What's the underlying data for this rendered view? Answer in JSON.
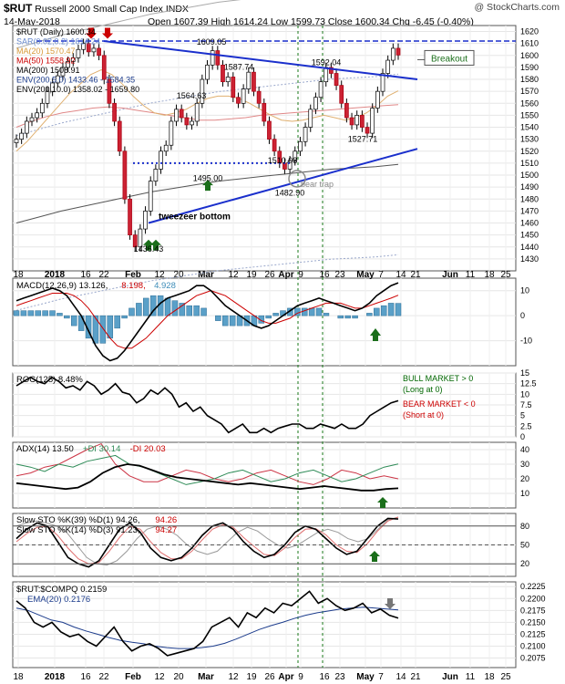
{
  "header": {
    "symbol": "$RUT",
    "title": "Russell 2000 Small Cap Index  INDX",
    "date": "14-May-2018",
    "ohlc": "Open 1607.39  High 1614.24  Low 1599.73  Close 1600.34  Chg -6.45 (-0.40%)",
    "brand": "@ StockCharts.com",
    "chg_color": "#cc0000"
  },
  "x_axis_labels": [
    "18",
    "2018",
    "16",
    "22",
    "Feb",
    "12",
    "20",
    "Mar",
    "12",
    "19",
    "26",
    "Apr",
    "9",
    "16",
    "23",
    "May",
    "7",
    "14",
    "21",
    "Jun",
    "11",
    "18",
    "25"
  ],
  "main_legend": [
    {
      "text": "$RUT (Daily) 1600.34",
      "color": "#000000"
    },
    {
      "text": "SAR(0.02,0.2) 1614.24",
      "color": "#6688cc"
    },
    {
      "text": "MA(20) 1570.47",
      "color": "#d89a3a"
    },
    {
      "text": "MA(50) 1558.92",
      "color": "#cc0000"
    },
    {
      "text": "MA(200) 1508.91",
      "color": "#000000"
    },
    {
      "text": "ENV(200,5.0) 1433.46 - 1584.35",
      "color": "#1c3c8c"
    },
    {
      "text": "ENV(200,10.0) 1358.02 - 1659.80",
      "color": "#000000"
    }
  ],
  "main_annotations": [
    {
      "text": "1609.05",
      "x": "Mar 1",
      "y": 1609
    },
    {
      "text": "1587.74",
      "x": "Mar 13",
      "y": 1588
    },
    {
      "text": "1592.04",
      "x": "Apr 18",
      "y": 1592
    },
    {
      "text": "1564.63",
      "x": "Feb 26",
      "y": 1564
    },
    {
      "text": "1510.08",
      "x": "Apr 2",
      "y": 1510
    },
    {
      "text": "1527.71",
      "x": "May 1",
      "y": 1528
    },
    {
      "text": "1495.00",
      "x": "Feb 27",
      "y": 1495
    },
    {
      "text": "1482.90",
      "x": "Apr 6",
      "y": 1483
    },
    {
      "text": "1436.43",
      "x": "Feb 9",
      "y": 1436
    },
    {
      "text": "tweezeer bottom",
      "x": "Feb 13",
      "y": 1463
    },
    {
      "text": "bear trap",
      "x": "Apr 10",
      "y": 1490
    },
    {
      "text": "Breakout",
      "x": "May 20",
      "y": 1598
    }
  ],
  "macd_legend": [
    {
      "text": "MACD(12,26,9) 13.126,",
      "color": "#000000"
    },
    {
      "text": "8.198,",
      "color": "#cc0000"
    },
    {
      "text": "4.928",
      "color": "#3c8cb8"
    }
  ],
  "roc_legend": {
    "text": "ROC(125) 8.48%"
  },
  "roc_notes": [
    {
      "text": "BULL MARKET > 0",
      "color": "#006600"
    },
    {
      "text": "(Long at 0)",
      "color": "#006600"
    },
    {
      "text": "BEAR MARKET < 0",
      "color": "#cc0000"
    },
    {
      "text": "(Short at 0)",
      "color": "#cc0000"
    }
  ],
  "adx_legend": [
    {
      "text": "ADX(14) 13.50",
      "color": "#000000"
    },
    {
      "text": "+DI 30.14",
      "color": "#2e8b57"
    },
    {
      "text": "-DI 20.03",
      "color": "#cc0000"
    }
  ],
  "sto_legend": [
    {
      "text": "Slow STO %K(39) %D(1) 94.26,",
      "color": "#000000"
    },
    {
      "text": "94.26",
      "color": "#cc0000"
    },
    {
      "text": "Slow STO %K(14) %D(3) 91.23,",
      "color": "#000000"
    },
    {
      "text": "94.27",
      "color": "#cc0000"
    }
  ],
  "ratio_legend": [
    {
      "text": "$RUT:$COMPQ 0.2159",
      "color": "#000000"
    },
    {
      "text": "EMA(20) 0.2176",
      "color": "#1c3c8c"
    }
  ],
  "chart_data": [
    {
      "type": "candlestick",
      "name": "$RUT (Daily)",
      "ylim": [
        1420,
        1625
      ],
      "y_ticks": [
        1430,
        1440,
        1450,
        1460,
        1470,
        1480,
        1490,
        1500,
        1510,
        1520,
        1530,
        1540,
        1550,
        1560,
        1570,
        1580,
        1590,
        1600,
        1610,
        1620
      ],
      "x_ticks": [
        "18",
        "2018",
        "16",
        "22",
        "Feb",
        "12",
        "20",
        "Mar",
        "12",
        "19",
        "26",
        "Apr",
        "9",
        "16",
        "23",
        "May",
        "7",
        "14",
        "21",
        "Jun",
        "11",
        "18",
        "25"
      ],
      "close": [
        1530,
        1535,
        1545,
        1548,
        1552,
        1560,
        1570,
        1577,
        1583,
        1590,
        1595,
        1598,
        1605,
        1610,
        1603,
        1606,
        1600,
        1580,
        1560,
        1545,
        1520,
        1480,
        1450,
        1440,
        1455,
        1470,
        1495,
        1505,
        1520,
        1525,
        1545,
        1555,
        1548,
        1542,
        1545,
        1560,
        1580,
        1592,
        1604,
        1592,
        1578,
        1582,
        1565,
        1560,
        1572,
        1586,
        1570,
        1560,
        1545,
        1530,
        1520,
        1510,
        1505,
        1512,
        1520,
        1528,
        1540,
        1555,
        1565,
        1578,
        1590,
        1585,
        1575,
        1560,
        1548,
        1542,
        1550,
        1540,
        1535,
        1556,
        1570,
        1585,
        1596,
        1606,
        1600.34
      ],
      "reference_line": 1614.24,
      "ma20": [
        1520,
        1528,
        1538,
        1548,
        1558,
        1568,
        1576,
        1584,
        1588,
        1584,
        1576,
        1566,
        1558,
        1552,
        1550,
        1552,
        1555,
        1560,
        1564,
        1566,
        1566,
        1564,
        1560,
        1555,
        1550,
        1546,
        1545,
        1546,
        1548,
        1550,
        1548,
        1546,
        1548,
        1552,
        1558,
        1566,
        1570.47
      ],
      "ma50": [
        1540,
        1545,
        1549,
        1552,
        1554,
        1556,
        1557,
        1556,
        1554,
        1552,
        1550,
        1548,
        1546,
        1546,
        1547,
        1548,
        1550,
        1551,
        1552,
        1553,
        1554,
        1555,
        1556,
        1557,
        1558,
        1558.92
      ],
      "ma200": [
        1460,
        1465,
        1470,
        1474,
        1478,
        1482,
        1486,
        1489,
        1492,
        1495,
        1497,
        1499,
        1501,
        1503,
        1505,
        1506,
        1507,
        1508.91
      ],
      "trendlines": [
        {
          "name": "upper channel",
          "from": [
            "Jan 22",
            1612
          ],
          "to": [
            "May 20",
            1580
          ]
        },
        {
          "name": "lower channel",
          "from": [
            "Feb 9",
            1460
          ],
          "to": [
            "May 20",
            1522
          ]
        },
        {
          "name": "support",
          "from": [
            "Feb 1",
            1510
          ],
          "to": [
            "Apr 6",
            1510
          ]
        },
        {
          "name": "breakout level",
          "from": [
            "Jan 1",
            1612
          ],
          "to": [
            "Jun 25",
            1612
          ]
        }
      ],
      "markers": [
        {
          "type": "arrow-down",
          "color": "#cc0000",
          "x": "Jan 18",
          "y": 1620
        },
        {
          "type": "arrow-down",
          "color": "#cc0000",
          "x": "Jan 24",
          "y": 1620
        },
        {
          "type": "arrow-up",
          "color": "#1a6e1a",
          "x": "Feb 9",
          "y": 1440
        },
        {
          "type": "arrow-up",
          "color": "#1a6e1a",
          "x": "Feb 12",
          "y": 1440
        },
        {
          "type": "arrow-up",
          "color": "#1a6e1a",
          "x": "Feb 27",
          "y": 1490
        }
      ]
    },
    {
      "type": "line+bar",
      "name": "MACD(12,26,9)",
      "ylim": [
        -20,
        15
      ],
      "y_ticks": [
        10,
        0,
        -10
      ],
      "macd": [
        6,
        7,
        8,
        9,
        10,
        11,
        10,
        8,
        4,
        0,
        -6,
        -12,
        -16,
        -18,
        -17,
        -14,
        -10,
        -6,
        -2,
        2,
        5,
        7,
        8,
        9,
        10,
        12,
        12,
        10,
        7,
        4,
        2,
        0,
        -2,
        -4,
        -5,
        -4,
        -2,
        0,
        2,
        4,
        5,
        6,
        7,
        6,
        5,
        4,
        3,
        2,
        3,
        5,
        8,
        10,
        12,
        13.126
      ],
      "signal": [
        4,
        5,
        6,
        7,
        8,
        9,
        9,
        9,
        8,
        6,
        3,
        -1,
        -5,
        -9,
        -12,
        -13,
        -13,
        -11,
        -9,
        -6,
        -3,
        0,
        2,
        4,
        6,
        8,
        9,
        10,
        9,
        8,
        6,
        4,
        2,
        0,
        -2,
        -3,
        -3,
        -2,
        -1,
        1,
        2,
        3,
        4,
        5,
        5,
        5,
        4,
        3,
        3,
        4,
        5,
        6,
        7,
        8.198
      ],
      "histogram": [
        2,
        2,
        2,
        2,
        2,
        2,
        1,
        -1,
        -4,
        -6,
        -9,
        -11,
        -11,
        -9,
        -5,
        -1,
        3,
        5,
        7,
        8,
        8,
        7,
        6,
        5,
        4,
        4,
        3,
        0,
        -2,
        -4,
        -4,
        -4,
        -4,
        -4,
        -3,
        -1,
        1,
        2,
        3,
        3,
        3,
        3,
        3,
        1,
        0,
        -1,
        -1,
        -1,
        0,
        1,
        3,
        4,
        5,
        4.928
      ]
    },
    {
      "type": "line",
      "name": "ROC(125)",
      "ylim": [
        0,
        15
      ],
      "y_ticks": [
        15,
        12.5,
        10,
        7.5,
        5,
        2.5,
        0
      ],
      "values": [
        12,
        13,
        14,
        13,
        12.5,
        14,
        13,
        11.5,
        12,
        11,
        13,
        12,
        10,
        11,
        12.5,
        10.5,
        10,
        8,
        9,
        11,
        10,
        11.5,
        10,
        7,
        8,
        6,
        7,
        5,
        4,
        3,
        1,
        2,
        3,
        1,
        1,
        2,
        1,
        2,
        2.5,
        3,
        3,
        2,
        2,
        3,
        2.5,
        2,
        3,
        2,
        2,
        3,
        5,
        6,
        7,
        8,
        8.48
      ]
    },
    {
      "type": "line",
      "name": "ADX(14) / DI",
      "ylim": [
        0,
        45
      ],
      "y_ticks": [
        40,
        30,
        20,
        10
      ],
      "adx": [
        17,
        16,
        15,
        14,
        13,
        14,
        18,
        24,
        28,
        30,
        29,
        26,
        23,
        21,
        20,
        19,
        18,
        17,
        16,
        17,
        16,
        15,
        14,
        13,
        14,
        15,
        14,
        13,
        12,
        12,
        13,
        13.5
      ],
      "plus_di": [
        30,
        28,
        25,
        30,
        28,
        32,
        34,
        36,
        30,
        28,
        24,
        20,
        16,
        18,
        20,
        24,
        26,
        22,
        18,
        20,
        24,
        26,
        22,
        18,
        20,
        24,
        28,
        30.14
      ],
      "minus_di": [
        22,
        24,
        28,
        30,
        35,
        40,
        44,
        30,
        22,
        18,
        18,
        22,
        26,
        24,
        20,
        18,
        20,
        24,
        26,
        22,
        18,
        16,
        20,
        26,
        24,
        20,
        22,
        20.03
      ]
    },
    {
      "type": "line",
      "name": "Slow Stochastic",
      "ylim": [
        0,
        100
      ],
      "y_ticks": [
        80,
        50,
        20
      ],
      "sto39_k": [
        80,
        85,
        88,
        85,
        80,
        70,
        50,
        30,
        20,
        18,
        25,
        40,
        60,
        75,
        80,
        75,
        65,
        50,
        40,
        35,
        40,
        55,
        70,
        78,
        72,
        60,
        50,
        45,
        50,
        60,
        70,
        75,
        70,
        60,
        55,
        60,
        75,
        90,
        94.26
      ],
      "sto14_k": [
        60,
        75,
        85,
        80,
        55,
        30,
        20,
        15,
        25,
        50,
        75,
        85,
        70,
        45,
        30,
        25,
        30,
        45,
        65,
        80,
        85,
        75,
        55,
        40,
        30,
        35,
        50,
        70,
        80,
        75,
        60,
        45,
        35,
        40,
        60,
        80,
        92,
        91.23
      ],
      "sto14_d": [
        55,
        68,
        78,
        80,
        65,
        45,
        28,
        20,
        22,
        40,
        62,
        80,
        75,
        55,
        38,
        28,
        28,
        40,
        58,
        75,
        82,
        78,
        62,
        48,
        35,
        33,
        45,
        62,
        75,
        76,
        66,
        50,
        40,
        38,
        52,
        72,
        88,
        94.27
      ]
    },
    {
      "type": "line",
      "name": "$RUT:$COMPQ",
      "ylim": [
        0.2055,
        0.2235
      ],
      "y_ticks": [
        0.2225,
        0.22,
        0.2175,
        0.215,
        0.2125,
        0.21,
        0.2075
      ],
      "ratio": [
        0.2195,
        0.218,
        0.215,
        0.214,
        0.215,
        0.213,
        0.212,
        0.2125,
        0.211,
        0.21,
        0.212,
        0.214,
        0.211,
        0.209,
        0.21,
        0.2105,
        0.2095,
        0.208,
        0.2085,
        0.209,
        0.2095,
        0.211,
        0.214,
        0.215,
        0.216,
        0.214,
        0.217,
        0.216,
        0.218,
        0.217,
        0.219,
        0.2185,
        0.22,
        0.2215,
        0.219,
        0.22,
        0.2185,
        0.2175,
        0.218,
        0.219,
        0.217,
        0.2178,
        0.2165,
        0.2159
      ],
      "ema20": [
        0.218,
        0.2175,
        0.2165,
        0.2155,
        0.215,
        0.214,
        0.2132,
        0.2125,
        0.2118,
        0.2112,
        0.2108,
        0.2105,
        0.21,
        0.2097,
        0.2095,
        0.2095,
        0.2097,
        0.21,
        0.2106,
        0.2115,
        0.2125,
        0.2135,
        0.2143,
        0.215,
        0.2158,
        0.2165,
        0.217,
        0.2174,
        0.2178,
        0.218,
        0.2182,
        0.218,
        0.2178,
        0.2176
      ]
    }
  ]
}
